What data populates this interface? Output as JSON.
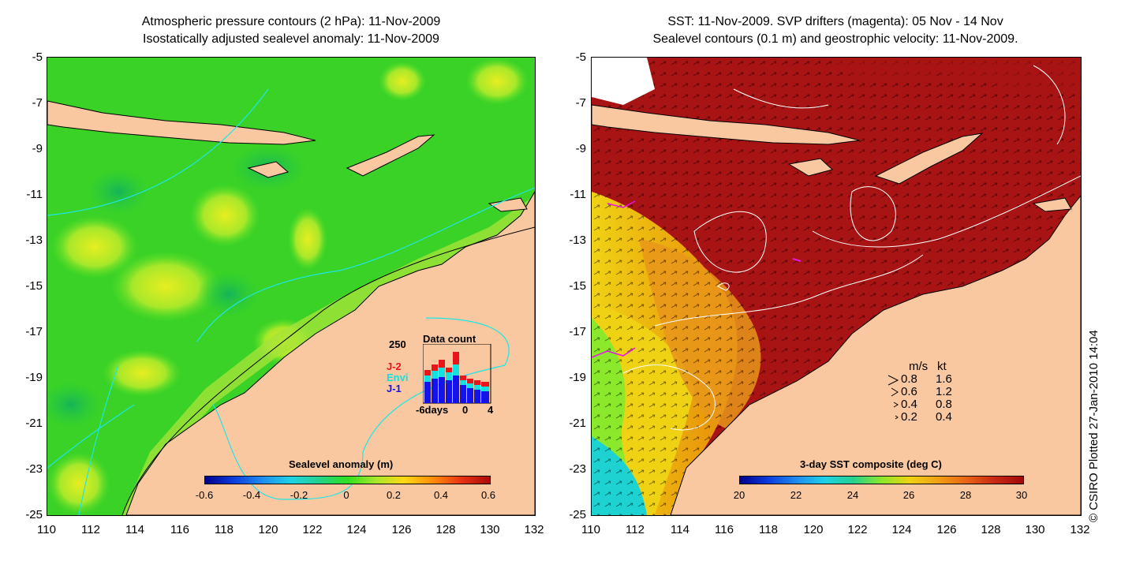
{
  "left_panel": {
    "title_line1": "Atmospheric pressure contours (2 hPa): 11-Nov-2009",
    "title_line2": "Isostatically adjusted sealevel anomaly: 11-Nov-2009",
    "y_ticks": [
      "-5",
      "-7",
      "-9",
      "-11",
      "-13",
      "-15",
      "-17",
      "-19",
      "-21",
      "-23",
      "-25"
    ],
    "x_ticks": [
      "110",
      "112",
      "114",
      "116",
      "118",
      "120",
      "122",
      "124",
      "126",
      "128",
      "130",
      "132"
    ],
    "colorbar_title": "Sealevel anomaly (m)",
    "colorbar_ticks": [
      "-0.6",
      "-0.4",
      "-0.2",
      "0",
      "0.2",
      "0.4",
      "0.6"
    ],
    "inset": {
      "title": "Data count",
      "y_max_label": "250",
      "x_label_left": "-6days",
      "x_label_mid": "0",
      "x_label_right": "4",
      "legend": [
        {
          "label": "J-2",
          "color": "#e8161b"
        },
        {
          "label": "Envi",
          "color": "#14e0e0"
        },
        {
          "label": "J-1",
          "color": "#1414e8"
        }
      ]
    }
  },
  "right_panel": {
    "title_line1": "SST: 11-Nov-2009. SVP drifters (magenta): 05 Nov - 14 Nov",
    "title_line2": "Sealevel contours (0.1 m) and geostrophic velocity: 11-Nov-2009.",
    "y_ticks": [
      "-5",
      "-7",
      "-9",
      "-11",
      "-13",
      "-15",
      "-17",
      "-19",
      "-21",
      "-23",
      "-25"
    ],
    "x_ticks": [
      "110",
      "112",
      "114",
      "116",
      "118",
      "120",
      "122",
      "124",
      "126",
      "128",
      "130",
      "132"
    ],
    "colorbar_title": "3-day SST composite (deg C)",
    "colorbar_ticks": [
      "20",
      "22",
      "24",
      "26",
      "28",
      "30"
    ],
    "velocity_legend": {
      "header_ms": "m/s",
      "header_kt": "kt",
      "rows": [
        {
          "ms": "0.8",
          "kt": "1.6"
        },
        {
          "ms": "0.6",
          "kt": "1.2"
        },
        {
          "ms": "0.4",
          "kt": "0.8"
        },
        {
          "ms": "0.2",
          "kt": "0.4"
        }
      ]
    }
  },
  "credit": "© CSIRO Plotted 27-Jan-2010 14:04",
  "colors": {
    "land": "#fac8a0",
    "sla_main": "#2ee01e",
    "sst_hot": "#b41414"
  }
}
